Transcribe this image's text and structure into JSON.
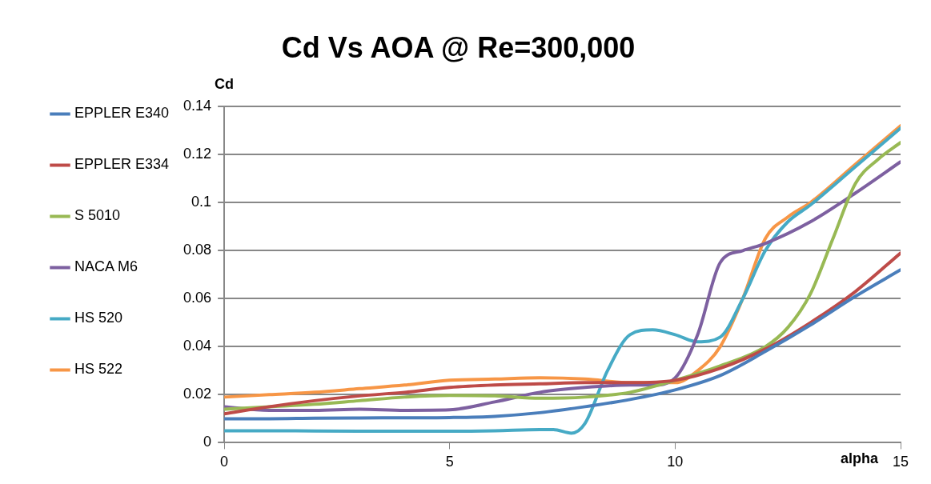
{
  "chart_data": {
    "type": "line",
    "title": "Cd Vs AOA @ Re=300,000",
    "xlabel": "alpha",
    "ylabel": "Cd",
    "xlim": [
      0,
      15
    ],
    "xticks": [
      0,
      5,
      10,
      15
    ],
    "ylim": [
      0,
      0.14
    ],
    "yticks": [
      0,
      0.02,
      0.04,
      0.06,
      0.08,
      0.1,
      0.12,
      0.14
    ],
    "grid": "y",
    "legend": "left",
    "marker": "none",
    "line_style": "solid",
    "series": [
      {
        "name": "EPPLER E340",
        "color": "#4a7ebb",
        "x": [
          0,
          1,
          2,
          3,
          4,
          5,
          6,
          7,
          8,
          9,
          10,
          11,
          12,
          13,
          14,
          15
        ],
        "values": [
          0.01,
          0.01,
          0.0102,
          0.0103,
          0.0104,
          0.0105,
          0.011,
          0.0125,
          0.015,
          0.018,
          0.022,
          0.028,
          0.038,
          0.049,
          0.061,
          0.072
        ]
      },
      {
        "name": "EPPLER E334",
        "color": "#be4b48",
        "x": [
          0,
          1,
          2,
          3,
          4,
          5,
          6,
          7,
          8,
          9,
          10,
          11,
          12,
          13,
          14,
          15
        ],
        "values": [
          0.012,
          0.015,
          0.0175,
          0.0195,
          0.021,
          0.023,
          0.024,
          0.0245,
          0.025,
          0.025,
          0.026,
          0.031,
          0.039,
          0.05,
          0.063,
          0.079
        ]
      },
      {
        "name": "S 5010",
        "color": "#98b954",
        "x": [
          0,
          1,
          2,
          3,
          4,
          5,
          6,
          7,
          8,
          9,
          10,
          11,
          12,
          12.5,
          13,
          13.5,
          14,
          14.5,
          15
        ],
        "values": [
          0.014,
          0.015,
          0.016,
          0.0175,
          0.019,
          0.0197,
          0.0195,
          0.0185,
          0.019,
          0.021,
          0.026,
          0.032,
          0.04,
          0.048,
          0.062,
          0.085,
          0.108,
          0.118,
          0.125
        ]
      },
      {
        "name": "NACA M6",
        "color": "#7d60a0",
        "x": [
          0,
          1,
          2,
          3,
          4,
          5,
          6,
          7,
          8,
          9,
          9.5,
          10,
          10.5,
          11,
          11.5,
          12,
          13,
          14,
          15
        ],
        "values": [
          0.015,
          0.0135,
          0.0135,
          0.014,
          0.0135,
          0.0137,
          0.017,
          0.021,
          0.023,
          0.024,
          0.024,
          0.027,
          0.045,
          0.075,
          0.08,
          0.083,
          0.092,
          0.104,
          0.117
        ]
      },
      {
        "name": "HS 520",
        "color": "#46aac5",
        "x": [
          0,
          1,
          2,
          3,
          4,
          5,
          6,
          7,
          7.3,
          7.7,
          8,
          8.5,
          9,
          9.5,
          10,
          10.5,
          11,
          11.5,
          12,
          12.5,
          13,
          14,
          15
        ],
        "values": [
          0.005,
          0.005,
          0.0049,
          0.0048,
          0.0048,
          0.0048,
          0.005,
          0.0055,
          0.0055,
          0.004,
          0.008,
          0.03,
          0.045,
          0.047,
          0.045,
          0.042,
          0.044,
          0.06,
          0.08,
          0.092,
          0.099,
          0.115,
          0.131
        ]
      },
      {
        "name": "HS 522",
        "color": "#f79646",
        "x": [
          0,
          1,
          2,
          3,
          4,
          5,
          6,
          7,
          8,
          9,
          10,
          10.5,
          11,
          11.5,
          12,
          12.5,
          13,
          14,
          15
        ],
        "values": [
          0.019,
          0.02,
          0.021,
          0.0225,
          0.024,
          0.026,
          0.0265,
          0.027,
          0.0265,
          0.025,
          0.025,
          0.03,
          0.04,
          0.06,
          0.085,
          0.094,
          0.1,
          0.116,
          0.132
        ]
      }
    ]
  }
}
